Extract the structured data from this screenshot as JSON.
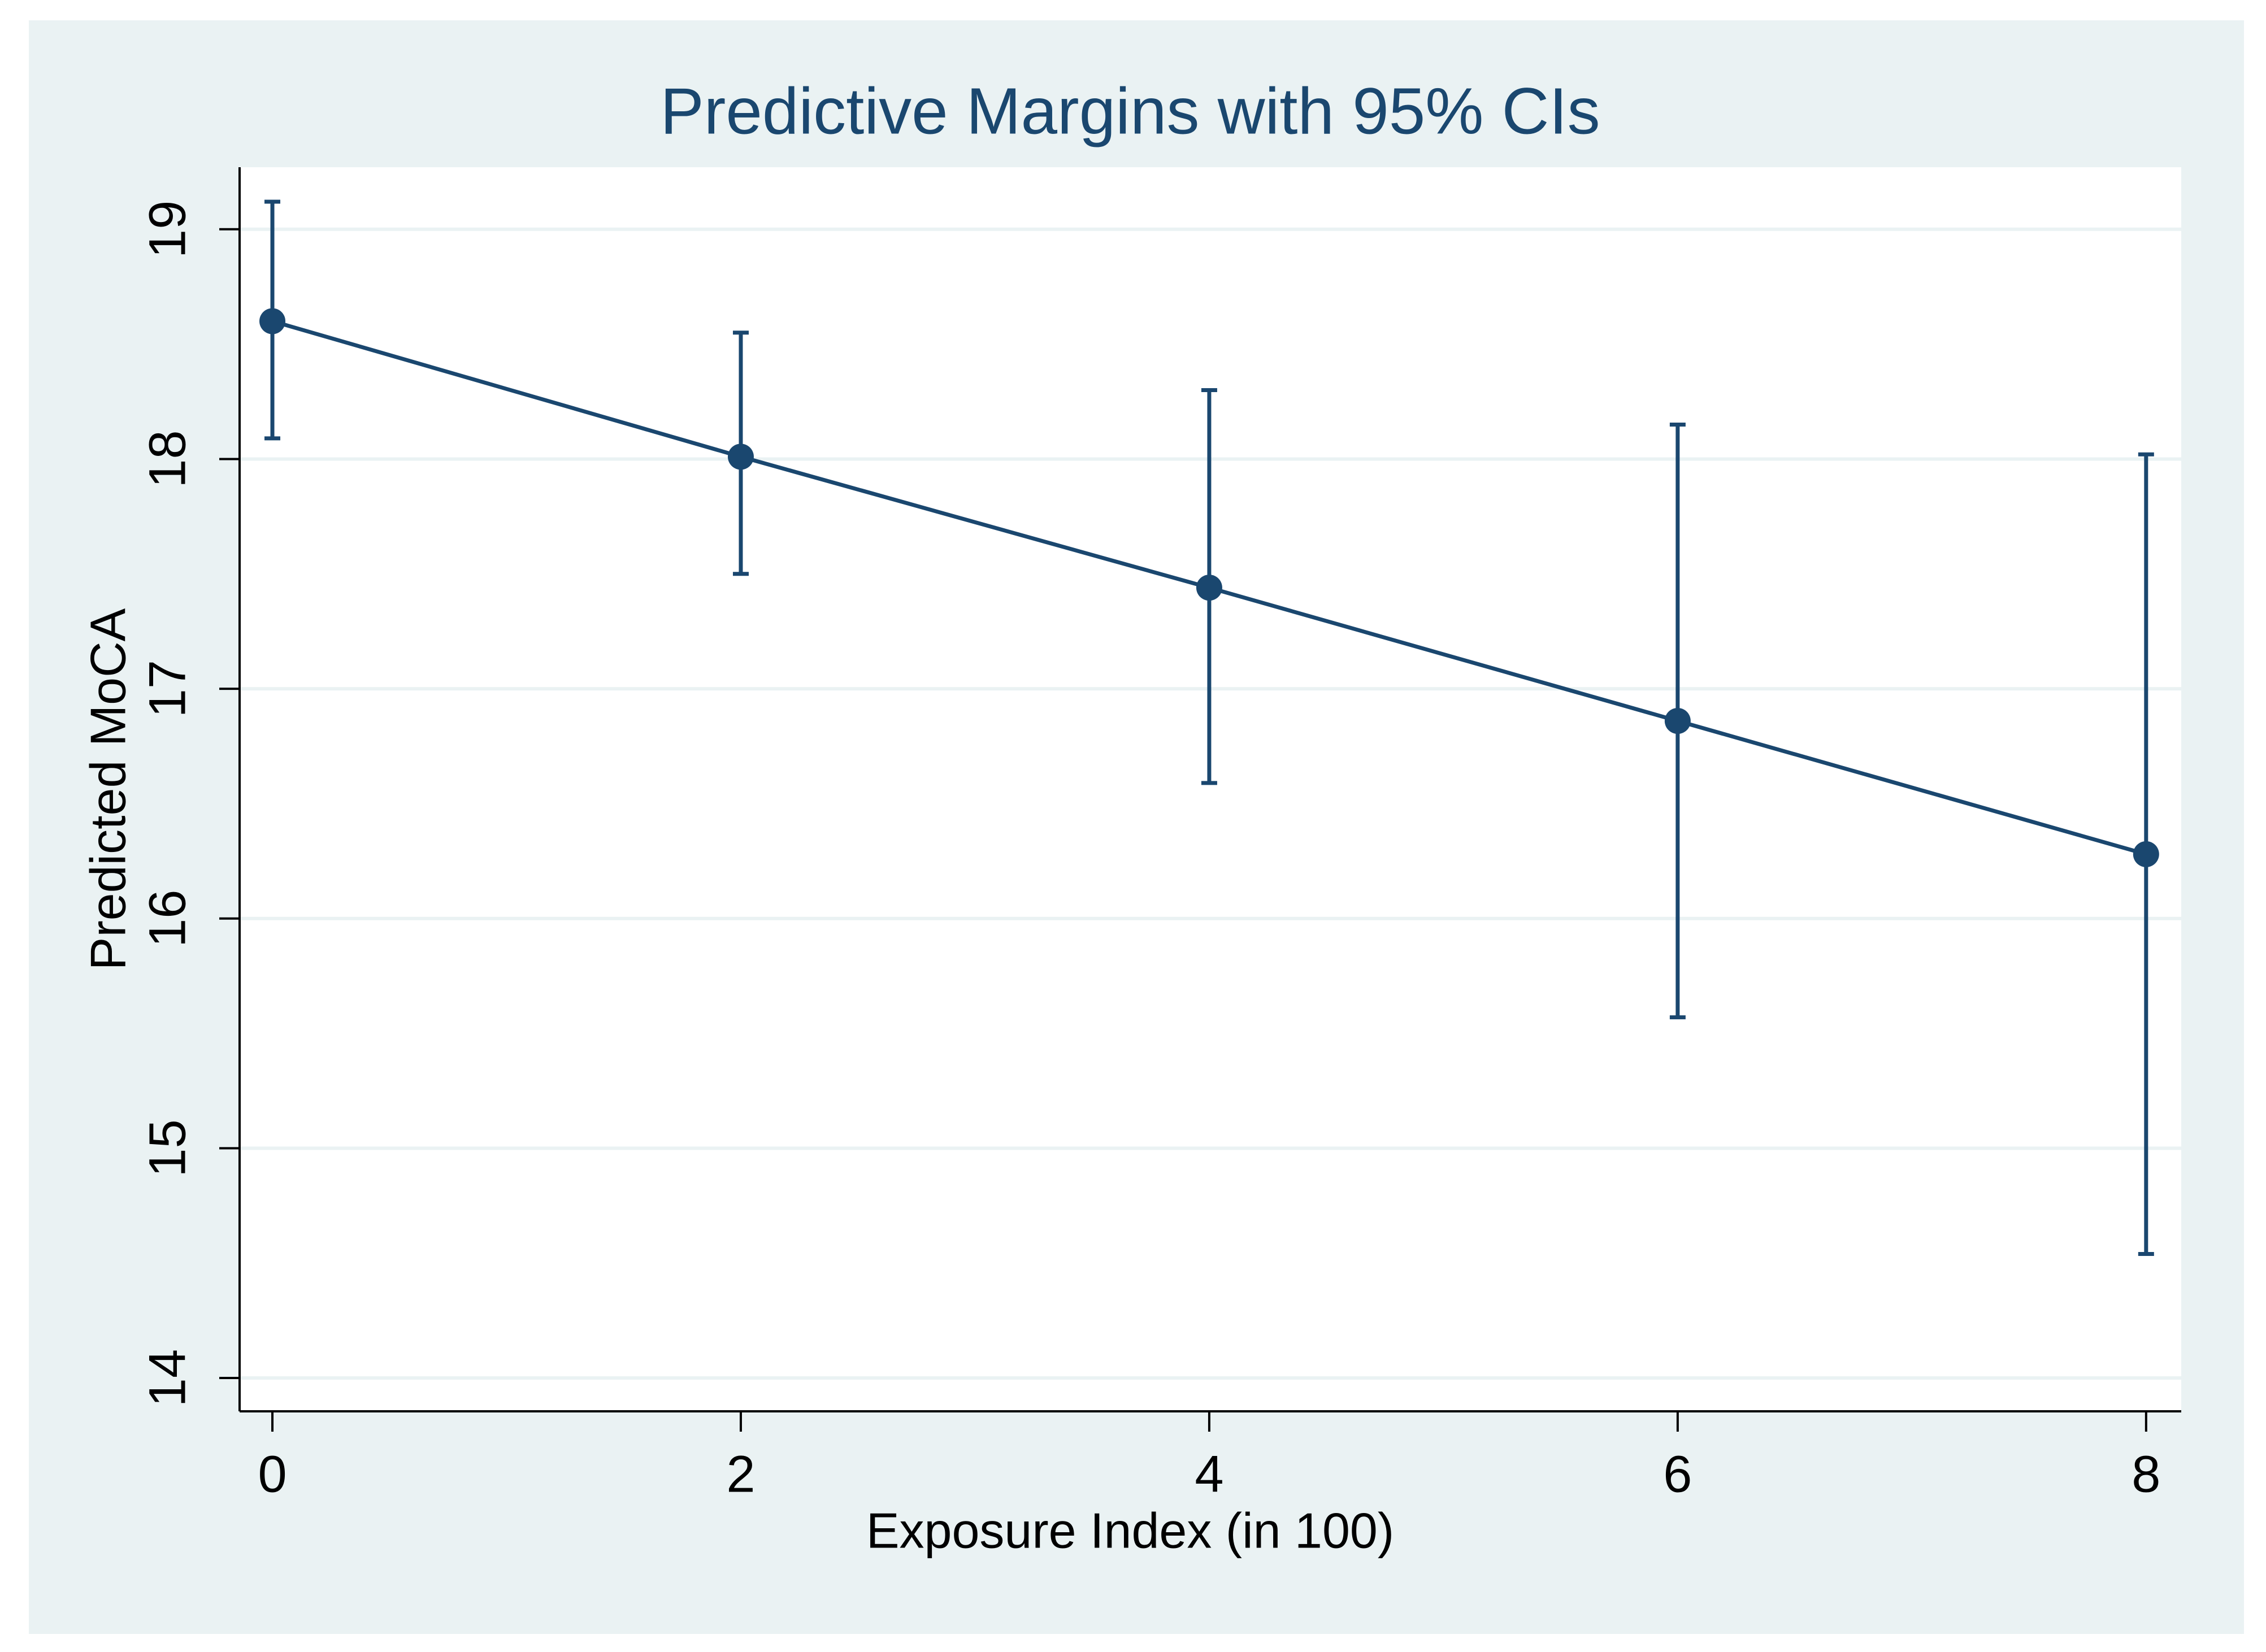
{
  "chart_data": {
    "type": "line",
    "title": "Predictive Margins with 95% CIs",
    "x_label": "Exposure Index (in 100)",
    "y_label": "Predicted MoCA",
    "x": [
      0,
      2,
      4,
      6,
      8
    ],
    "values": [
      18.6,
      18.01,
      17.44,
      16.86,
      16.28
    ],
    "lower": [
      18.09,
      17.5,
      16.59,
      15.57,
      14.54
    ],
    "upper": [
      19.12,
      18.55,
      18.3,
      18.15,
      18.02
    ],
    "color": "#1a476f",
    "xlim": [
      -0.14,
      8.15
    ],
    "ylim": [
      13.855,
      19.27
    ],
    "xticks": [
      0,
      2,
      4,
      6,
      8
    ],
    "yticks": [
      14,
      15,
      16,
      17,
      18,
      19
    ],
    "grid": true
  }
}
